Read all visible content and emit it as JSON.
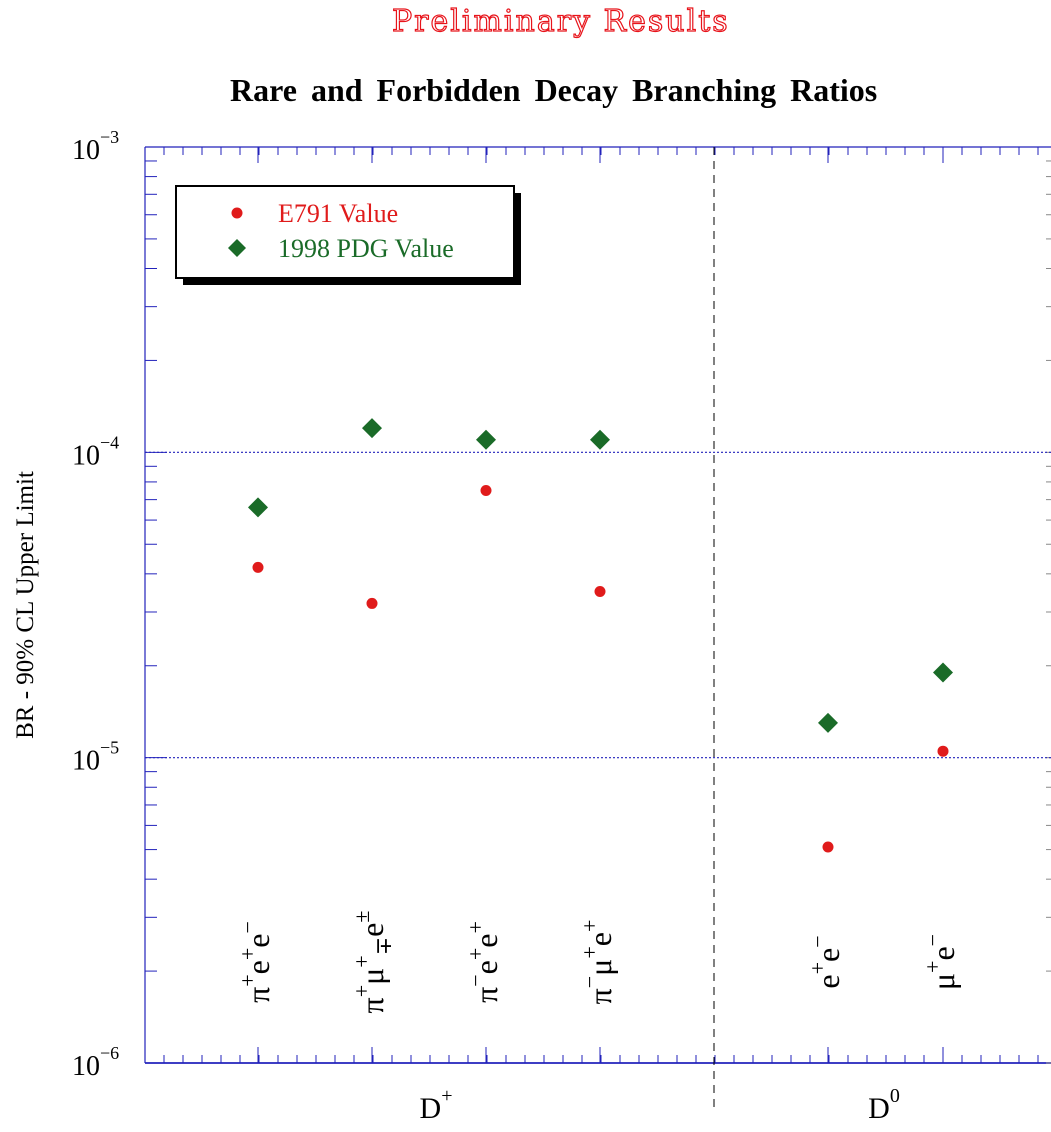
{
  "header": {
    "banner": "Preliminary   Results",
    "title": "Rare and Forbidden Decay Branching Ratios"
  },
  "chart_data": {
    "type": "scatter",
    "title": "Rare and Forbidden Decay Branching Ratios",
    "ylabel": "BR - 90% CL Upper Limit",
    "xlabel": "",
    "yscale": "log",
    "ylim": [
      1e-06,
      0.001
    ],
    "y_ticks": [
      {
        "value": 1e-06,
        "base": "10",
        "exp": "−6"
      },
      {
        "value": 1e-05,
        "base": "10",
        "exp": "−5"
      },
      {
        "value": 0.0001,
        "base": "10",
        "exp": "−4"
      },
      {
        "value": 0.001,
        "base": "10",
        "exp": "−3"
      }
    ],
    "grid": "dotted horizontal lines at 1e-5 and 1e-4",
    "legend_position": "top-left",
    "categories": [
      {
        "group": "D+",
        "label": "π⁺e⁺e⁻"
      },
      {
        "group": "D+",
        "label": "π⁺μ⁺μ∓e±"
      },
      {
        "group": "D+",
        "label": "π⁻e⁺e⁺"
      },
      {
        "group": "D+",
        "label": "π⁻μ⁺e⁺"
      },
      {
        "group": "D0",
        "label": "e⁺e⁻"
      },
      {
        "group": "D0",
        "label": "μ⁺e⁻"
      }
    ],
    "category_labels": [
      {
        "main": "π",
        "sups": [
          "+",
          "",
          "+",
          ""
        ],
        "parts": [
          "e",
          "e"
        ],
        "sup_list": [
          "+",
          "+",
          "−"
        ]
      },
      {
        "main": "π",
        "sup_list": [
          "+",
          "±",
          "∓"
        ],
        "parts": [
          "μ",
          "e"
        ]
      },
      {
        "main": "π",
        "sup_list": [
          "−",
          "+",
          "+"
        ],
        "parts": [
          "e",
          "e"
        ]
      },
      {
        "main": "π",
        "sup_list": [
          "−",
          "+",
          "+"
        ],
        "parts": [
          "μ",
          "e"
        ]
      },
      {
        "main": "e",
        "sup_list": [
          "+",
          "−"
        ],
        "parts": [
          "e"
        ]
      },
      {
        "main": "μ",
        "sup_list": [
          "+",
          "−"
        ],
        "parts": [
          "e"
        ]
      }
    ],
    "groups": [
      {
        "name": "D+",
        "base": "D",
        "sup": "+"
      },
      {
        "name": "D0",
        "base": "D",
        "sup": "0"
      }
    ],
    "series": [
      {
        "name": "E791 Value",
        "marker": "circle",
        "color": "#e01b1b",
        "values": [
          4.2e-05,
          3.2e-05,
          7.5e-05,
          3.5e-05,
          5.1e-06,
          1.05e-05
        ]
      },
      {
        "name": "1998 PDG Value",
        "marker": "diamond",
        "color": "#1a6b28",
        "values": [
          6.6e-05,
          0.00012,
          0.00011,
          0.00011,
          1.3e-05,
          1.9e-05
        ]
      }
    ]
  },
  "colors": {
    "axis": "#2222bb",
    "grid": "#2222bb",
    "banner": "#e8141b",
    "e791": "#e01b1b",
    "pdg": "#1a6b28"
  }
}
